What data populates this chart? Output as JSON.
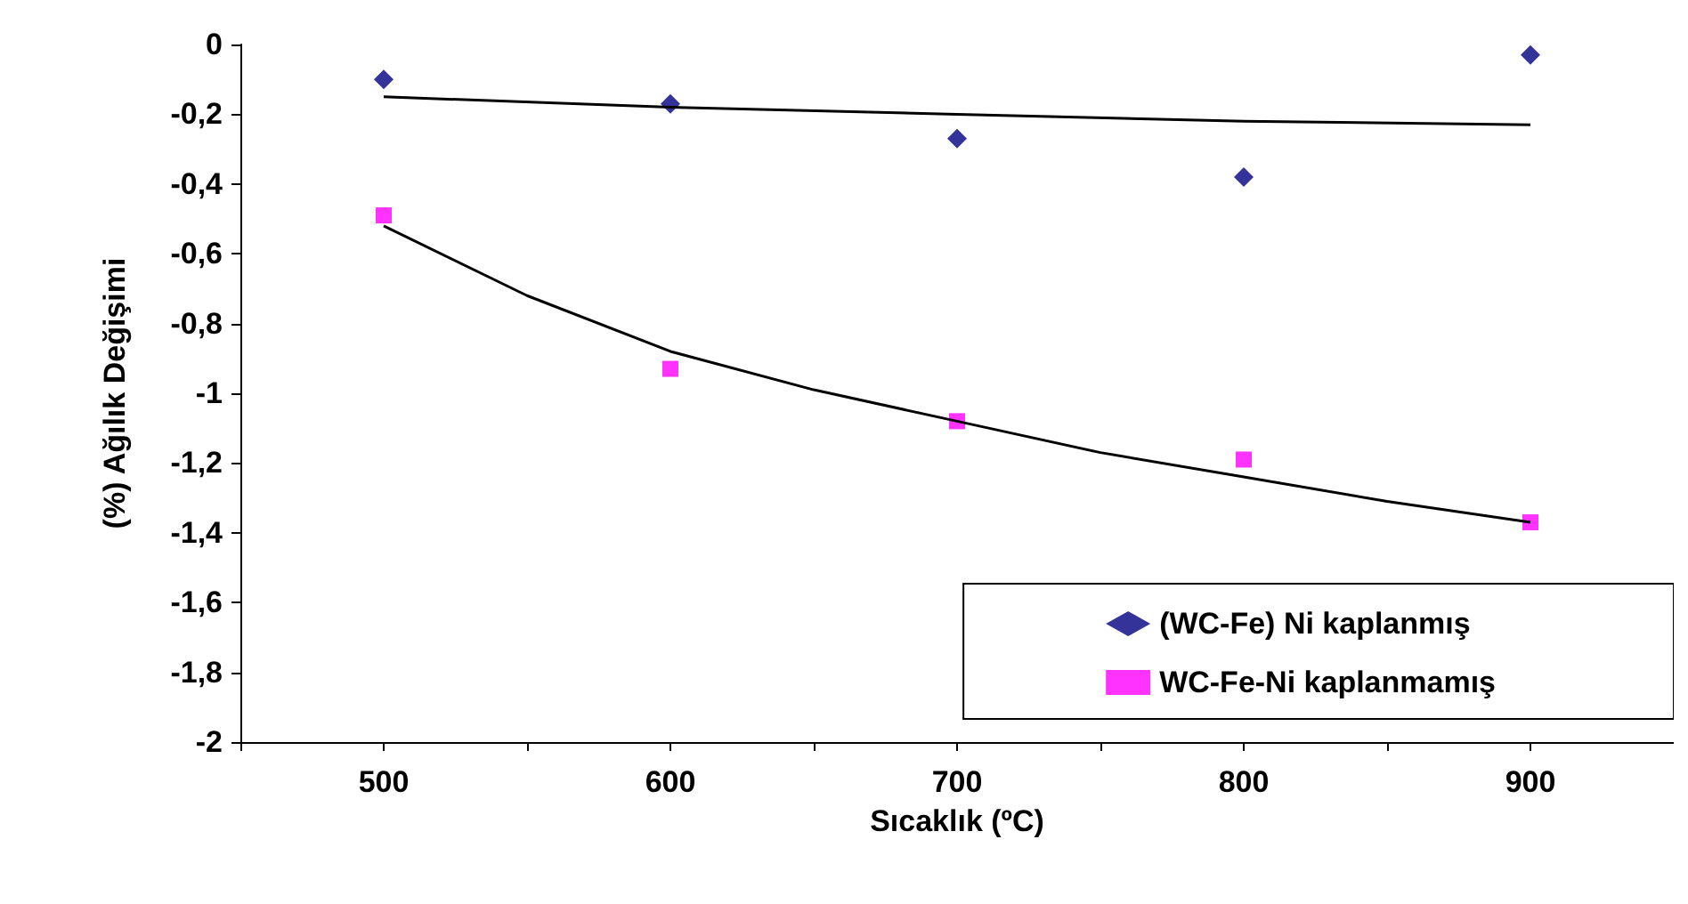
{
  "chart_data": {
    "type": "scatter",
    "xlabel": "Sıcaklık (ºC)",
    "ylabel": "(%) Ağılık Değişimi",
    "xlim": [
      450,
      950
    ],
    "xticks": [
      {
        "value": 450,
        "label": null
      },
      500,
      {
        "value": 550,
        "label": null
      },
      600,
      {
        "value": 650,
        "label": null
      },
      700,
      {
        "value": 750,
        "label": null
      },
      800,
      {
        "value": 850,
        "label": null
      },
      900,
      {
        "value": 950,
        "label": null
      }
    ],
    "ylim": [
      -2,
      0
    ],
    "yticks": [
      {
        "value": -2,
        "label": "-2"
      },
      {
        "value": -1.8,
        "label": "-1,8"
      },
      {
        "value": -1.6,
        "label": "-1,6"
      },
      {
        "value": -1.4,
        "label": "-1,4"
      },
      {
        "value": -1.2,
        "label": "-1,2"
      },
      {
        "value": -1,
        "label": "-1"
      },
      {
        "value": -0.8,
        "label": "-0,8"
      },
      {
        "value": -0.6,
        "label": "-0,6"
      },
      {
        "value": -0.4,
        "label": "-0,4"
      },
      {
        "value": -0.2,
        "label": "-0,2"
      },
      {
        "value": 0,
        "label": "0"
      }
    ],
    "grid": false,
    "legend": "bottom right",
    "series": [
      {
        "name": "(WC-Fe) Ni kaplanmış",
        "color": "#000080",
        "marker": "diamond",
        "x": [
          500,
          600,
          700,
          800,
          900
        ],
        "values": [
          -0.1,
          -0.17,
          -0.27,
          -0.38,
          -0.03
        ]
      },
      {
        "name": "WC-Fe-Ni kaplanmamış",
        "color": "#ff00ff",
        "marker": "square",
        "x": [
          500,
          600,
          700,
          800,
          900
        ],
        "values": [
          -0.49,
          -0.93,
          -1.08,
          -1.19,
          -1.37
        ]
      },
      {
        "type": "line",
        "color": "#000000",
        "marker": "none",
        "line_style": "solid",
        "x": [
          500,
          600,
          700,
          800,
          900
        ],
        "values": [
          -0.15,
          -0.18,
          -0.2,
          -0.22,
          -0.23
        ]
      },
      {
        "type": "line",
        "color": "#000000",
        "marker": "none",
        "line_style": "solid",
        "x": [
          500,
          550,
          600,
          650,
          700,
          750,
          800,
          850,
          900
        ],
        "values": [
          -0.52,
          -0.72,
          -0.88,
          -0.99,
          -1.08,
          -1.17,
          -1.24,
          -1.31,
          -1.37
        ]
      }
    ]
  }
}
